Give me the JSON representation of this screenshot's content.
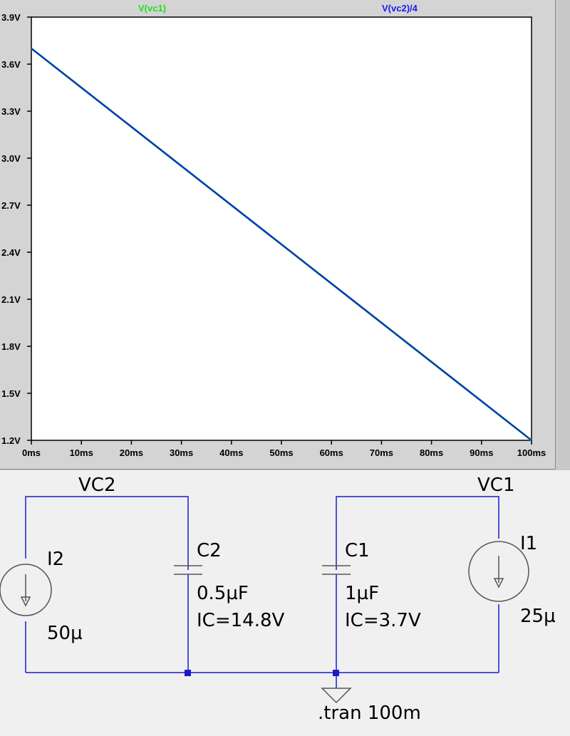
{
  "plot": {
    "traces": [
      {
        "name": "V(vc1)",
        "color": "#22dd22"
      },
      {
        "name": "V(vc2)/4",
        "color": "#1a1aee"
      }
    ],
    "y_ticks": [
      "3.9V",
      "3.6V",
      "3.3V",
      "3.0V",
      "2.7V",
      "2.4V",
      "2.1V",
      "1.8V",
      "1.5V",
      "1.2V"
    ],
    "x_ticks": [
      "0ms",
      "10ms",
      "20ms",
      "30ms",
      "40ms",
      "50ms",
      "60ms",
      "70ms",
      "80ms",
      "90ms",
      "100ms"
    ]
  },
  "chart_data": {
    "type": "line",
    "x": [
      0,
      100
    ],
    "series": [
      {
        "name": "V(vc1)",
        "values": [
          3.7,
          1.2
        ]
      },
      {
        "name": "V(vc2)/4",
        "values": [
          3.7,
          1.2
        ]
      }
    ],
    "xlim": [
      0,
      100
    ],
    "ylim": [
      1.2,
      3.9
    ],
    "x_unit": "ms",
    "y_unit": "V"
  },
  "schematic": {
    "net_vc2": "VC2",
    "net_vc1": "VC1",
    "i2": {
      "name": "I2",
      "value": "50µ"
    },
    "i1": {
      "name": "I1",
      "value": "25µ"
    },
    "c2": {
      "name": "C2",
      "value": "0.5µF",
      "ic": "IC=14.8V"
    },
    "c1": {
      "name": "C1",
      "value": "1µF",
      "ic": "IC=3.7V"
    },
    "directive": ".tran 100m"
  }
}
